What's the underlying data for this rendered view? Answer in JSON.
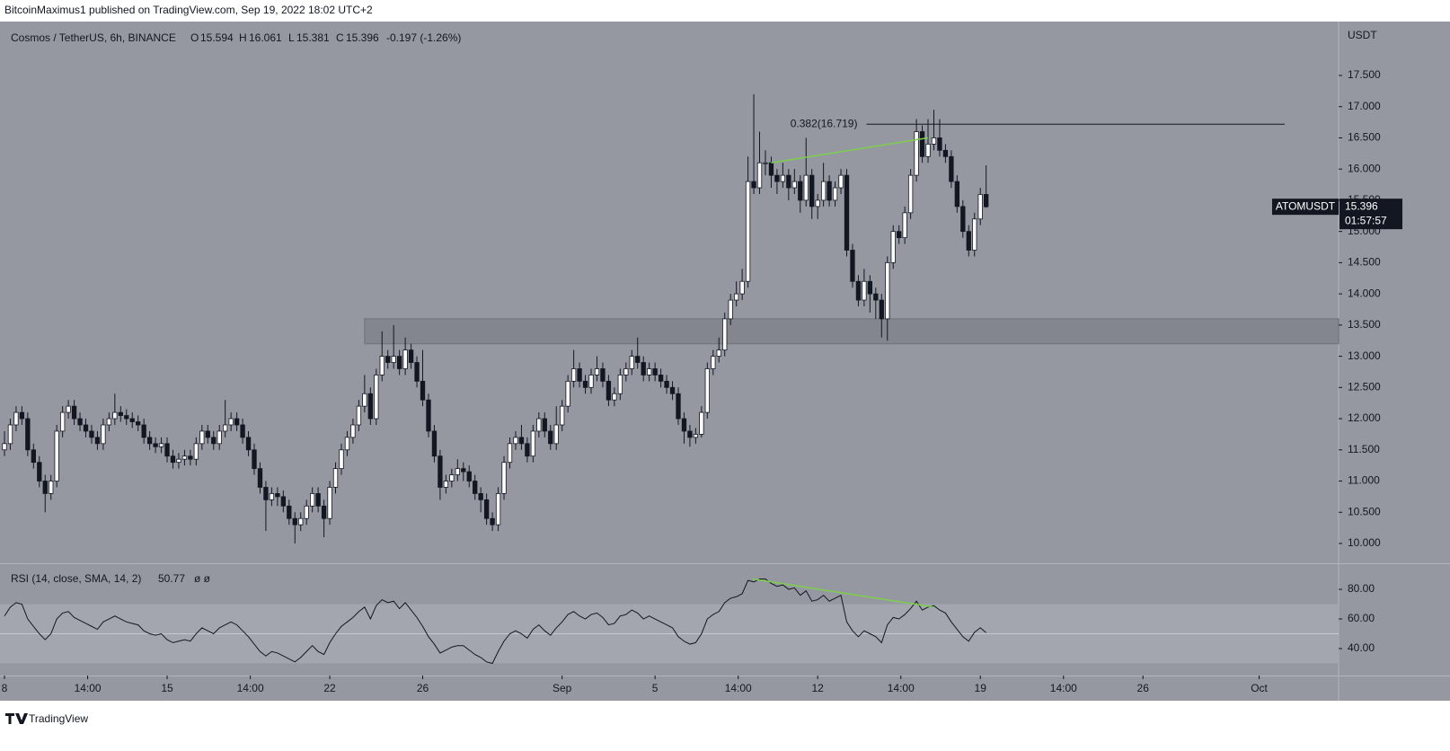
{
  "header": {
    "publisher": "BitcoinMaximus1 published on TradingView.com, Sep 19, 2022 18:02 UTC+2",
    "brand": "TradingView"
  },
  "chart_data": {
    "type": "candlestick",
    "title": "Cosmos / TetherUS, 6h, BINANCE",
    "ohlc_letters": [
      "O",
      "H",
      "L",
      "C"
    ],
    "change_label": "-0.197 (-1.26%)",
    "axis_unit": "USDT",
    "symbol_tag": "ATOMUSDT",
    "countdown": "01:57:57",
    "up_color": "#ffffff",
    "down_color": "#131722",
    "x": [
      0,
      0.25,
      0.5,
      0.75,
      1,
      1.25,
      1.5,
      1.75,
      2,
      2.25,
      2.5,
      2.75,
      3,
      3.25,
      3.5,
      3.75,
      4,
      4.25,
      4.5,
      4.75,
      5,
      5.25,
      5.5,
      5.75,
      6,
      6.25,
      6.5,
      6.75,
      7,
      7.25,
      7.5,
      7.75,
      8,
      8.25,
      8.5,
      8.75,
      9,
      9.25,
      9.5,
      9.75,
      10,
      10.25,
      10.5,
      10.75,
      11,
      11.25,
      11.5,
      11.75,
      12,
      12.25,
      12.5,
      12.75,
      13,
      13.25,
      13.5,
      13.75,
      14,
      14.25,
      14.5,
      14.75,
      15,
      15.25,
      15.5,
      15.75,
      16,
      16.25,
      16.5,
      16.75,
      17,
      17.25,
      17.5,
      17.75,
      18,
      18.25,
      18.5,
      18.75,
      19,
      19.25,
      19.5,
      19.75,
      20,
      20.25,
      20.5,
      20.75,
      21,
      21.25,
      21.5,
      21.75,
      22,
      22.25,
      22.5,
      22.75,
      23,
      23.25,
      23.5,
      23.75,
      24,
      24.25,
      24.5,
      24.75,
      25,
      25.25,
      25.5,
      25.75,
      26,
      26.25,
      26.5,
      26.75,
      27,
      27.25,
      27.5,
      27.75,
      28,
      28.25,
      28.5,
      28.75,
      29,
      29.25,
      29.5,
      29.75,
      30,
      30.25,
      30.5,
      30.75,
      31,
      31.25,
      31.5,
      31.75,
      32,
      32.25,
      32.5,
      32.75,
      33,
      33.25,
      33.5,
      33.75,
      34,
      34.25,
      34.5,
      34.75,
      35,
      35.25,
      35.5,
      35.75,
      36,
      36.25,
      36.5,
      36.75,
      37,
      37.25,
      37.5,
      37.75,
      38,
      38.25,
      38.5,
      38.75,
      39,
      39.25,
      39.5,
      39.75,
      40,
      40.25,
      40.5,
      40.75,
      41,
      41.25,
      41.5,
      41.75,
      42,
      42.25
    ],
    "open": [
      11.5,
      11.6,
      11.9,
      12.1,
      12.0,
      11.5,
      11.3,
      11.0,
      10.8,
      11.0,
      11.8,
      12.1,
      12.2,
      12.0,
      11.9,
      11.8,
      11.7,
      11.6,
      11.9,
      12.0,
      12.1,
      12.05,
      12.0,
      11.95,
      11.9,
      11.7,
      11.6,
      11.55,
      11.6,
      11.4,
      11.3,
      11.35,
      11.4,
      11.35,
      11.6,
      11.8,
      11.7,
      11.6,
      11.8,
      11.9,
      12.0,
      11.9,
      11.7,
      11.5,
      11.2,
      10.9,
      10.7,
      10.8,
      10.75,
      10.6,
      10.4,
      10.3,
      10.4,
      10.6,
      10.8,
      10.6,
      10.4,
      10.9,
      11.2,
      11.5,
      11.7,
      11.9,
      12.2,
      12.4,
      12.0,
      12.7,
      13.0,
      12.9,
      13.0,
      12.8,
      13.1,
      12.9,
      12.6,
      12.3,
      11.8,
      11.4,
      10.9,
      11.0,
      11.1,
      11.2,
      11.15,
      11.0,
      10.8,
      10.7,
      10.4,
      10.3,
      10.8,
      11.3,
      11.6,
      11.7,
      11.6,
      11.4,
      11.8,
      12.0,
      11.8,
      11.6,
      11.9,
      12.2,
      12.6,
      12.8,
      12.6,
      12.5,
      12.7,
      12.8,
      12.6,
      12.3,
      12.4,
      12.7,
      12.8,
      13.0,
      12.9,
      12.7,
      12.8,
      12.7,
      12.6,
      12.5,
      12.4,
      12.0,
      11.8,
      11.7,
      11.75,
      12.1,
      12.8,
      13.0,
      13.1,
      13.6,
      13.9,
      14.0,
      14.2,
      15.8,
      15.7,
      16.1,
      16.1,
      15.9,
      15.8,
      15.9,
      15.7,
      15.8,
      15.5,
      15.9,
      15.4,
      15.5,
      15.8,
      15.5,
      15.7,
      15.9,
      14.7,
      14.2,
      13.9,
      14.2,
      14.0,
      13.9,
      13.6,
      14.5,
      15.0,
      14.9,
      15.3,
      15.9,
      16.6,
      16.2,
      16.4,
      16.5,
      16.3,
      16.2,
      15.8,
      15.4,
      15.0,
      14.7,
      15.2,
      15.594
    ],
    "high": [
      11.8,
      12.0,
      12.2,
      12.2,
      12.1,
      11.6,
      11.4,
      11.1,
      11.1,
      11.9,
      12.2,
      12.3,
      12.3,
      12.1,
      12.0,
      11.9,
      11.8,
      12.0,
      12.1,
      12.4,
      12.2,
      12.15,
      12.1,
      12.05,
      12.0,
      11.8,
      11.7,
      11.7,
      11.7,
      11.5,
      11.45,
      11.5,
      11.5,
      11.7,
      11.9,
      11.9,
      11.8,
      11.9,
      12.3,
      12.1,
      12.1,
      12.0,
      11.8,
      11.6,
      11.3,
      11.0,
      10.9,
      10.9,
      10.85,
      10.7,
      10.5,
      10.5,
      10.7,
      10.9,
      10.9,
      10.7,
      11.0,
      11.3,
      11.6,
      11.8,
      12.0,
      12.3,
      12.7,
      12.5,
      12.8,
      13.4,
      13.1,
      13.5,
      13.1,
      13.3,
      13.2,
      13.0,
      13.1,
      12.4,
      11.9,
      11.5,
      11.1,
      11.2,
      11.35,
      11.3,
      11.25,
      11.1,
      10.9,
      10.8,
      10.5,
      10.9,
      11.4,
      11.7,
      11.8,
      11.9,
      11.7,
      11.9,
      12.1,
      12.1,
      11.9,
      12.2,
      12.3,
      12.7,
      13.1,
      12.9,
      12.7,
      12.8,
      13.0,
      12.9,
      12.7,
      12.5,
      12.8,
      12.9,
      13.1,
      13.3,
      13.0,
      12.9,
      12.9,
      12.8,
      12.7,
      12.6,
      12.5,
      12.1,
      11.9,
      11.85,
      12.2,
      12.9,
      13.1,
      13.3,
      13.7,
      14.0,
      14.2,
      14.4,
      16.2,
      17.2,
      16.6,
      16.3,
      16.2,
      16.0,
      16.1,
      16.0,
      16.0,
      15.9,
      16.5,
      16.0,
      15.6,
      16.1,
      15.9,
      15.8,
      16.0,
      16.0,
      14.8,
      14.3,
      14.4,
      14.3,
      14.1,
      14.0,
      14.6,
      15.1,
      15.1,
      15.4,
      16.0,
      16.8,
      16.7,
      16.8,
      16.95,
      16.8,
      16.4,
      16.3,
      15.9,
      15.5,
      15.1,
      15.3,
      15.7,
      16.061
    ],
    "low": [
      11.4,
      11.5,
      11.8,
      11.9,
      11.4,
      11.2,
      10.9,
      10.5,
      10.7,
      10.9,
      11.7,
      12.0,
      11.9,
      11.8,
      11.7,
      11.6,
      11.5,
      11.5,
      11.8,
      11.9,
      11.95,
      11.9,
      11.85,
      11.8,
      11.6,
      11.5,
      11.45,
      11.45,
      11.3,
      11.2,
      11.2,
      11.25,
      11.25,
      11.25,
      11.5,
      11.6,
      11.5,
      11.5,
      11.7,
      11.8,
      11.8,
      11.6,
      11.4,
      11.1,
      10.8,
      10.2,
      10.6,
      10.6,
      10.5,
      10.3,
      10.0,
      10.2,
      10.3,
      10.5,
      10.5,
      10.1,
      10.3,
      10.8,
      11.1,
      11.4,
      11.6,
      11.8,
      12.1,
      11.9,
      11.9,
      12.6,
      12.8,
      12.8,
      12.7,
      12.7,
      12.8,
      12.5,
      12.2,
      11.7,
      11.3,
      10.7,
      10.8,
      10.9,
      11.0,
      11.0,
      10.9,
      10.7,
      10.5,
      10.3,
      10.2,
      10.2,
      10.7,
      11.2,
      11.5,
      11.5,
      11.3,
      11.3,
      11.7,
      11.7,
      11.5,
      11.5,
      11.8,
      12.1,
      12.5,
      12.5,
      12.4,
      12.4,
      12.6,
      12.5,
      12.2,
      12.2,
      12.3,
      12.6,
      12.7,
      12.8,
      12.6,
      12.6,
      12.6,
      12.5,
      12.4,
      12.3,
      11.9,
      11.6,
      11.55,
      11.6,
      11.7,
      12.0,
      12.7,
      12.9,
      13.0,
      13.5,
      13.8,
      13.9,
      14.1,
      15.6,
      15.6,
      15.9,
      15.7,
      15.6,
      15.7,
      15.5,
      15.6,
      15.3,
      15.4,
      15.2,
      15.2,
      15.4,
      15.4,
      15.4,
      15.6,
      14.6,
      14.1,
      13.8,
      13.8,
      13.7,
      13.6,
      13.3,
      13.25,
      14.4,
      14.8,
      14.8,
      15.2,
      15.8,
      16.1,
      16.1,
      16.3,
      16.2,
      16.1,
      15.7,
      15.3,
      14.9,
      14.6,
      14.6,
      15.1,
      15.381
    ],
    "close": [
      11.6,
      11.9,
      12.1,
      12.0,
      11.5,
      11.3,
      11.0,
      10.8,
      11.0,
      11.8,
      12.1,
      12.2,
      12.0,
      11.9,
      11.8,
      11.7,
      11.6,
      11.9,
      12.0,
      12.1,
      12.05,
      12.0,
      11.95,
      11.9,
      11.7,
      11.6,
      11.55,
      11.6,
      11.4,
      11.3,
      11.35,
      11.4,
      11.35,
      11.6,
      11.8,
      11.7,
      11.6,
      11.8,
      11.9,
      12.0,
      11.9,
      11.7,
      11.5,
      11.2,
      10.9,
      10.7,
      10.8,
      10.75,
      10.6,
      10.4,
      10.3,
      10.4,
      10.6,
      10.8,
      10.6,
      10.4,
      10.9,
      11.2,
      11.5,
      11.7,
      11.9,
      12.2,
      12.4,
      12.0,
      12.7,
      13.0,
      12.9,
      13.0,
      12.8,
      13.1,
      12.9,
      12.6,
      12.3,
      11.8,
      11.4,
      10.9,
      11.0,
      11.1,
      11.2,
      11.15,
      11.0,
      10.8,
      10.7,
      10.4,
      10.3,
      10.8,
      11.3,
      11.6,
      11.7,
      11.6,
      11.4,
      11.8,
      12.0,
      11.8,
      11.6,
      11.9,
      12.2,
      12.6,
      12.8,
      12.6,
      12.5,
      12.7,
      12.8,
      12.6,
      12.3,
      12.4,
      12.7,
      12.8,
      13.0,
      12.9,
      12.7,
      12.8,
      12.7,
      12.6,
      12.5,
      12.4,
      12.0,
      11.8,
      11.7,
      11.75,
      12.1,
      12.8,
      13.0,
      13.1,
      13.6,
      13.9,
      14.0,
      14.2,
      15.8,
      15.7,
      16.1,
      16.1,
      15.9,
      15.8,
      15.9,
      15.7,
      15.8,
      15.5,
      15.9,
      15.4,
      15.5,
      15.8,
      15.5,
      15.7,
      15.9,
      14.7,
      14.2,
      13.9,
      14.2,
      14.0,
      13.9,
      13.6,
      14.5,
      15.0,
      14.9,
      15.3,
      15.9,
      16.6,
      16.2,
      16.4,
      16.5,
      16.3,
      16.2,
      15.8,
      15.4,
      15.0,
      14.7,
      15.2,
      15.594,
      15.396
    ],
    "xlim": [
      -0.193,
      57.42
    ],
    "xticks": [
      {
        "value": 0,
        "label": "8"
      },
      {
        "value": 3.58,
        "label": "14:00"
      },
      {
        "value": 7,
        "label": "15"
      },
      {
        "value": 10.58,
        "label": "14:00"
      },
      {
        "value": 14,
        "label": "22"
      },
      {
        "value": 18,
        "label": "26"
      },
      {
        "value": 24,
        "label": "Sep"
      },
      {
        "value": 28,
        "label": "5"
      },
      {
        "value": 31.58,
        "label": "14:00"
      },
      {
        "value": 35,
        "label": "12"
      },
      {
        "value": 38.58,
        "label": "14:00"
      },
      {
        "value": 42,
        "label": "19"
      },
      {
        "value": 45.58,
        "label": "14:00"
      },
      {
        "value": 49,
        "label": "26"
      },
      {
        "value": 54,
        "label": "Oct"
      }
    ],
    "ylim": [
      9.683,
      18.306
    ],
    "yticks": [
      {
        "value": 10,
        "label": "10.000"
      },
      {
        "value": 10.5,
        "label": "10.500"
      },
      {
        "value": 11,
        "label": "11.000"
      },
      {
        "value": 11.5,
        "label": "11.500"
      },
      {
        "value": 12,
        "label": "12.000"
      },
      {
        "value": 12.5,
        "label": "12.500"
      },
      {
        "value": 13,
        "label": "13.000"
      },
      {
        "value": 13.5,
        "label": "13.500"
      },
      {
        "value": 14,
        "label": "14.000"
      },
      {
        "value": 14.5,
        "label": "14.500"
      },
      {
        "value": 15,
        "label": "15.000"
      },
      {
        "value": 15.5,
        "label": "15.500"
      },
      {
        "value": 16,
        "label": "16.000"
      },
      {
        "value": 16.5,
        "label": "16.500"
      },
      {
        "value": 17,
        "label": "17.000"
      },
      {
        "value": 17.5,
        "label": "17.500"
      }
    ],
    "zone": {
      "range": [
        13.2,
        13.6
      ],
      "x_start": 15.5,
      "color": "#80838b"
    },
    "fib_line": {
      "label": "0.382(16.719)",
      "value": 16.719,
      "x": [
        37.1,
        55.1
      ],
      "color": "#131722"
    },
    "divergence": {
      "x": [
        33,
        39.75
      ],
      "values": [
        16.1,
        16.5
      ],
      "color": "#7ccf4a"
    },
    "indicator": {
      "type": "line",
      "title": "RSI (14, close, SMA, 14, 2)",
      "extra": "ø ø",
      "color": "#131722",
      "values": [
        62,
        68,
        71,
        70,
        60,
        55,
        50,
        46,
        50,
        60,
        64,
        65,
        61,
        59,
        57,
        55,
        53,
        58,
        60,
        62,
        60,
        58,
        57,
        56,
        52,
        50,
        49,
        50,
        46,
        44,
        45,
        46,
        45,
        50,
        54,
        52,
        50,
        54,
        56,
        58,
        56,
        52,
        48,
        43,
        38,
        35,
        38,
        37,
        35,
        33,
        31,
        34,
        38,
        42,
        38,
        36,
        44,
        50,
        55,
        58,
        61,
        65,
        68,
        60,
        69,
        73,
        71,
        72,
        67,
        71,
        66,
        61,
        55,
        48,
        43,
        37,
        39,
        41,
        42,
        42,
        39,
        36,
        34,
        31,
        30,
        38,
        45,
        50,
        52,
        50,
        47,
        53,
        56,
        52,
        49,
        54,
        58,
        63,
        65,
        62,
        60,
        63,
        64,
        61,
        56,
        57,
        62,
        63,
        66,
        64,
        60,
        62,
        60,
        58,
        56,
        54,
        48,
        45,
        43,
        44,
        50,
        60,
        63,
        65,
        71,
        74,
        75,
        77,
        86,
        85,
        87,
        87,
        84,
        82,
        83,
        80,
        81,
        76,
        79,
        72,
        73,
        76,
        72,
        74,
        76,
        58,
        52,
        48,
        52,
        50,
        48,
        44,
        56,
        61,
        60,
        63,
        67,
        72,
        66,
        68,
        69,
        66,
        64,
        58,
        53,
        48,
        45,
        51,
        54,
        50.77
      ],
      "ylim": [
        21.8,
        97
      ],
      "yticks": [
        {
          "value": 40,
          "label": "40.00"
        },
        {
          "value": 60,
          "label": "60.00"
        },
        {
          "value": 80,
          "label": "80.00"
        }
      ],
      "band": [
        30,
        70
      ],
      "band_color": "#a3a6ae",
      "middle": 50,
      "divergence": {
        "x": [
          32.2,
          40.0
        ],
        "values": [
          87,
          68
        ],
        "color": "#7ccf4a"
      }
    }
  }
}
